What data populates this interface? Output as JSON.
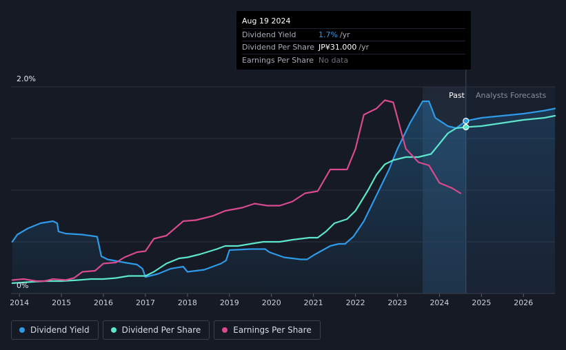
{
  "tooltip": {
    "date": "Aug 19 2024",
    "rows": [
      {
        "label": "Dividend Yield",
        "value": "1.7%",
        "unit": "/yr"
      },
      {
        "label": "Dividend Per Share",
        "value": "JP¥31.000",
        "unit": "/yr"
      },
      {
        "label": "Earnings Per Share",
        "value": "No data",
        "unit": ""
      }
    ]
  },
  "chart_data": {
    "type": "line",
    "title": "",
    "xlabel": "",
    "ylabel": "",
    "y_tick_labels": [
      "0%",
      "2.0%"
    ],
    "x_tick_labels": [
      "2014",
      "2015",
      "2016",
      "2017",
      "2018",
      "2019",
      "2020",
      "2021",
      "2022",
      "2023",
      "2024",
      "2025",
      "2026"
    ],
    "past_label": "Past",
    "forecast_label": "Analysts Forecasts",
    "xlim": [
      2013.8,
      2026.75
    ],
    "ylim": [
      0,
      2.0
    ],
    "past_region_start": 2023.6,
    "forecast_start": 2024.63,
    "colors": {
      "yield": "#2f9ae8",
      "dps": "#5de6cc",
      "eps": "#d94a8f"
    },
    "series": [
      {
        "name": "Dividend Yield",
        "unit": "%",
        "color": "#2f9ae8",
        "points": [
          [
            2013.83,
            0.5
          ],
          [
            2013.95,
            0.57
          ],
          [
            2014.2,
            0.63
          ],
          [
            2014.5,
            0.68
          ],
          [
            2014.8,
            0.7
          ],
          [
            2014.9,
            0.68
          ],
          [
            2014.93,
            0.6
          ],
          [
            2015.1,
            0.58
          ],
          [
            2015.5,
            0.57
          ],
          [
            2015.85,
            0.55
          ],
          [
            2015.95,
            0.36
          ],
          [
            2016.1,
            0.33
          ],
          [
            2016.5,
            0.3
          ],
          [
            2016.8,
            0.28
          ],
          [
            2016.93,
            0.24
          ],
          [
            2017.0,
            0.16
          ],
          [
            2017.3,
            0.19
          ],
          [
            2017.6,
            0.24
          ],
          [
            2017.9,
            0.26
          ],
          [
            2018.0,
            0.21
          ],
          [
            2018.4,
            0.23
          ],
          [
            2018.8,
            0.29
          ],
          [
            2018.92,
            0.32
          ],
          [
            2019.0,
            0.42
          ],
          [
            2019.5,
            0.43
          ],
          [
            2019.85,
            0.43
          ],
          [
            2019.95,
            0.4
          ],
          [
            2020.3,
            0.35
          ],
          [
            2020.7,
            0.33
          ],
          [
            2020.85,
            0.33
          ],
          [
            2021.0,
            0.37
          ],
          [
            2021.4,
            0.46
          ],
          [
            2021.6,
            0.48
          ],
          [
            2021.75,
            0.48
          ],
          [
            2021.95,
            0.55
          ],
          [
            2022.2,
            0.7
          ],
          [
            2022.5,
            0.95
          ],
          [
            2022.8,
            1.2
          ],
          [
            2023.0,
            1.4
          ],
          [
            2023.3,
            1.65
          ],
          [
            2023.6,
            1.86
          ],
          [
            2023.75,
            1.86
          ],
          [
            2023.9,
            1.7
          ],
          [
            2024.2,
            1.62
          ],
          [
            2024.4,
            1.6
          ],
          [
            2024.63,
            1.67
          ]
        ],
        "forecast": [
          [
            2024.63,
            1.67
          ],
          [
            2025.0,
            1.7
          ],
          [
            2025.5,
            1.72
          ],
          [
            2026.0,
            1.74
          ],
          [
            2026.5,
            1.77
          ],
          [
            2026.75,
            1.79
          ]
        ]
      },
      {
        "name": "Dividend Per Share",
        "unit": "JP¥",
        "color": "#5de6cc",
        "points": [
          [
            2013.83,
            0.1
          ],
          [
            2014.2,
            0.11
          ],
          [
            2014.6,
            0.12
          ],
          [
            2015.0,
            0.12
          ],
          [
            2015.4,
            0.13
          ],
          [
            2015.7,
            0.14
          ],
          [
            2016.0,
            0.14
          ],
          [
            2016.3,
            0.15
          ],
          [
            2016.6,
            0.17
          ],
          [
            2017.0,
            0.17
          ],
          [
            2017.2,
            0.21
          ],
          [
            2017.5,
            0.29
          ],
          [
            2017.8,
            0.34
          ],
          [
            2018.0,
            0.35
          ],
          [
            2018.3,
            0.38
          ],
          [
            2018.7,
            0.43
          ],
          [
            2018.9,
            0.46
          ],
          [
            2019.2,
            0.46
          ],
          [
            2019.5,
            0.48
          ],
          [
            2019.8,
            0.5
          ],
          [
            2020.2,
            0.5
          ],
          [
            2020.5,
            0.52
          ],
          [
            2020.9,
            0.54
          ],
          [
            2021.1,
            0.54
          ],
          [
            2021.3,
            0.6
          ],
          [
            2021.5,
            0.68
          ],
          [
            2021.8,
            0.72
          ],
          [
            2022.0,
            0.8
          ],
          [
            2022.3,
            1.0
          ],
          [
            2022.5,
            1.15
          ],
          [
            2022.7,
            1.25
          ],
          [
            2022.9,
            1.29
          ],
          [
            2023.2,
            1.32
          ],
          [
            2023.5,
            1.32
          ],
          [
            2023.8,
            1.35
          ],
          [
            2024.0,
            1.45
          ],
          [
            2024.2,
            1.55
          ],
          [
            2024.4,
            1.6
          ],
          [
            2024.63,
            1.61
          ]
        ],
        "forecast": [
          [
            2024.63,
            1.61
          ],
          [
            2025.0,
            1.62
          ],
          [
            2025.5,
            1.65
          ],
          [
            2026.0,
            1.68
          ],
          [
            2026.5,
            1.7
          ],
          [
            2026.75,
            1.72
          ]
        ]
      },
      {
        "name": "Earnings Per Share",
        "unit": "JP¥",
        "color": "#d94a8f",
        "points": [
          [
            2013.83,
            0.13
          ],
          [
            2014.1,
            0.14
          ],
          [
            2014.4,
            0.12
          ],
          [
            2014.6,
            0.12
          ],
          [
            2014.8,
            0.14
          ],
          [
            2015.1,
            0.13
          ],
          [
            2015.3,
            0.15
          ],
          [
            2015.5,
            0.21
          ],
          [
            2015.8,
            0.22
          ],
          [
            2016.0,
            0.29
          ],
          [
            2016.3,
            0.3
          ],
          [
            2016.5,
            0.35
          ],
          [
            2016.8,
            0.4
          ],
          [
            2017.0,
            0.41
          ],
          [
            2017.2,
            0.53
          ],
          [
            2017.5,
            0.56
          ],
          [
            2017.9,
            0.7
          ],
          [
            2018.2,
            0.71
          ],
          [
            2018.6,
            0.75
          ],
          [
            2018.9,
            0.8
          ],
          [
            2019.3,
            0.83
          ],
          [
            2019.6,
            0.87
          ],
          [
            2019.9,
            0.85
          ],
          [
            2020.2,
            0.85
          ],
          [
            2020.5,
            0.89
          ],
          [
            2020.8,
            0.97
          ],
          [
            2021.1,
            0.99
          ],
          [
            2021.4,
            1.2
          ],
          [
            2021.8,
            1.2
          ],
          [
            2022.0,
            1.4
          ],
          [
            2022.2,
            1.73
          ],
          [
            2022.5,
            1.79
          ],
          [
            2022.7,
            1.87
          ],
          [
            2022.9,
            1.85
          ],
          [
            2023.0,
            1.7
          ],
          [
            2023.2,
            1.4
          ],
          [
            2023.5,
            1.27
          ],
          [
            2023.75,
            1.24
          ],
          [
            2024.0,
            1.07
          ],
          [
            2024.3,
            1.02
          ],
          [
            2024.5,
            0.97
          ]
        ],
        "forecast": []
      }
    ]
  },
  "legend": [
    {
      "label": "Dividend Yield",
      "color": "#2f9ae8"
    },
    {
      "label": "Dividend Per Share",
      "color": "#5de6cc"
    },
    {
      "label": "Earnings Per Share",
      "color": "#d94a8f"
    }
  ]
}
